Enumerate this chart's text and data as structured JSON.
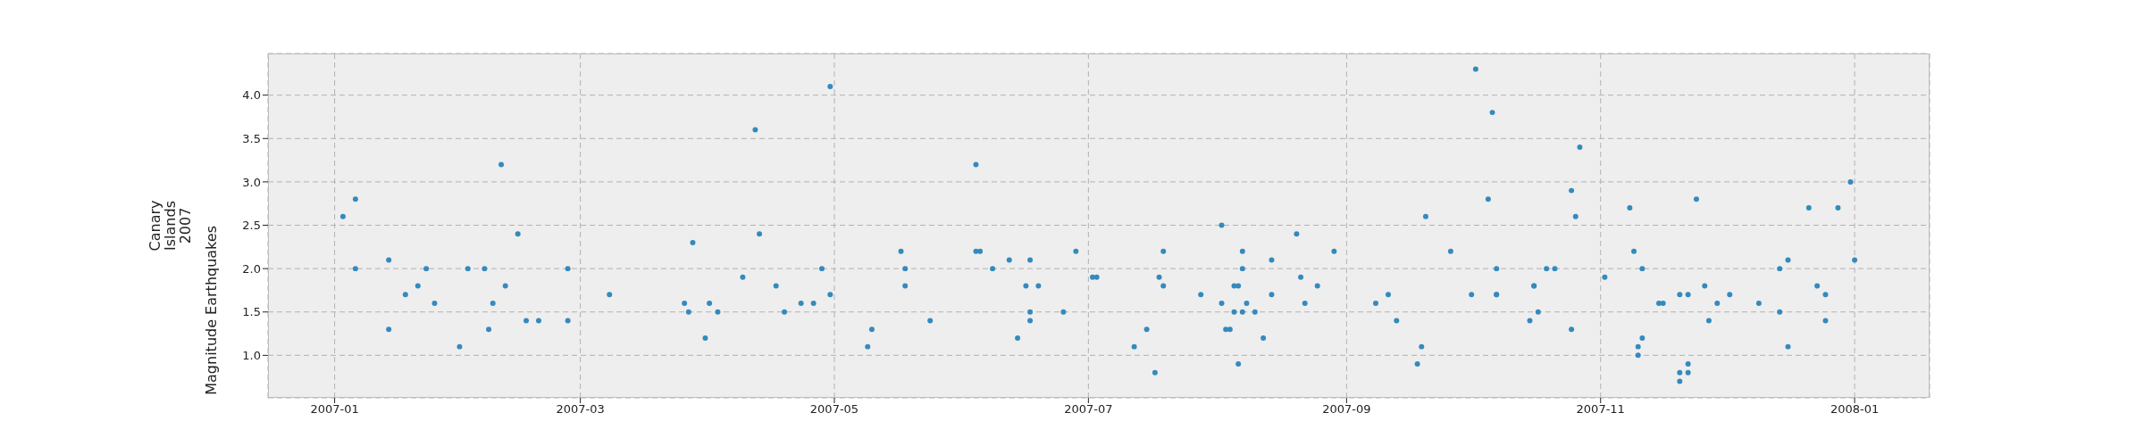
{
  "chart_data": {
    "type": "scatter",
    "title": "Canary Islands 2007",
    "ylabel": "Magnitude Earthquakes",
    "x": [
      "2007-01-03",
      "2007-01-06",
      "2007-01-06",
      "2007-01-14",
      "2007-01-14",
      "2007-01-18",
      "2007-01-21",
      "2007-01-23",
      "2007-01-25",
      "2007-01-31",
      "2007-02-02",
      "2007-02-06",
      "2007-02-07",
      "2007-02-08",
      "2007-02-10",
      "2007-02-11",
      "2007-02-14",
      "2007-02-16",
      "2007-02-19",
      "2007-02-26",
      "2007-02-26",
      "2007-03-08",
      "2007-03-26",
      "2007-03-27",
      "2007-03-28",
      "2007-03-31",
      "2007-04-01",
      "2007-04-03",
      "2007-04-09",
      "2007-04-12",
      "2007-04-13",
      "2007-04-17",
      "2007-04-19",
      "2007-04-23",
      "2007-04-26",
      "2007-04-28",
      "2007-04-30",
      "2007-04-30",
      "2007-05-09",
      "2007-05-10",
      "2007-05-17",
      "2007-05-18",
      "2007-05-18",
      "2007-05-24",
      "2007-06-04",
      "2007-06-04",
      "2007-06-05",
      "2007-06-08",
      "2007-06-12",
      "2007-06-14",
      "2007-06-16",
      "2007-06-17",
      "2007-06-17",
      "2007-06-17",
      "2007-06-19",
      "2007-06-25",
      "2007-06-28",
      "2007-07-02",
      "2007-07-03",
      "2007-07-12",
      "2007-07-15",
      "2007-07-17",
      "2007-07-18",
      "2007-07-19",
      "2007-07-19",
      "2007-07-28",
      "2007-08-02",
      "2007-08-02",
      "2007-08-03",
      "2007-08-04",
      "2007-08-05",
      "2007-08-05",
      "2007-08-06",
      "2007-08-06",
      "2007-08-07",
      "2007-08-07",
      "2007-08-07",
      "2007-08-08",
      "2007-08-10",
      "2007-08-12",
      "2007-08-14",
      "2007-08-14",
      "2007-08-20",
      "2007-08-21",
      "2007-08-22",
      "2007-08-25",
      "2007-08-29",
      "2007-09-08",
      "2007-09-11",
      "2007-09-13",
      "2007-09-18",
      "2007-09-19",
      "2007-09-20",
      "2007-09-26",
      "2007-10-01",
      "2007-10-02",
      "2007-10-05",
      "2007-10-06",
      "2007-10-07",
      "2007-10-07",
      "2007-10-07",
      "2007-10-15",
      "2007-10-16",
      "2007-10-16",
      "2007-10-17",
      "2007-10-19",
      "2007-10-21",
      "2007-10-25",
      "2007-10-25",
      "2007-10-26",
      "2007-10-27",
      "2007-11-02",
      "2007-11-08",
      "2007-11-09",
      "2007-11-10",
      "2007-11-10",
      "2007-11-11",
      "2007-11-11",
      "2007-11-15",
      "2007-11-16",
      "2007-11-20",
      "2007-11-20",
      "2007-11-20",
      "2007-11-22",
      "2007-11-22",
      "2007-11-22",
      "2007-11-24",
      "2007-11-26",
      "2007-11-27",
      "2007-11-29",
      "2007-12-02",
      "2007-12-09",
      "2007-12-14",
      "2007-12-14",
      "2007-12-16",
      "2007-12-16",
      "2007-12-21",
      "2007-12-23",
      "2007-12-25",
      "2007-12-25",
      "2007-12-28",
      "2007-12-31",
      "2008-01-01"
    ],
    "series": [
      {
        "color": "#348abd",
        "values": [
          2.6,
          2.8,
          2.0,
          2.1,
          1.3,
          1.7,
          1.8,
          2.0,
          1.6,
          1.1,
          2.0,
          2.0,
          1.3,
          1.6,
          3.2,
          1.8,
          2.4,
          1.4,
          1.4,
          2.0,
          1.4,
          1.7,
          1.6,
          1.5,
          2.3,
          1.2,
          1.6,
          1.5,
          1.9,
          3.6,
          2.4,
          1.8,
          1.5,
          1.6,
          1.6,
          2.0,
          1.7,
          4.1,
          1.1,
          1.3,
          2.2,
          2.0,
          1.8,
          1.4,
          3.2,
          2.2,
          2.2,
          2.0,
          2.1,
          1.2,
          1.8,
          2.1,
          1.5,
          1.4,
          1.8,
          1.5,
          2.2,
          1.9,
          1.9,
          1.1,
          1.3,
          0.8,
          1.9,
          2.2,
          1.8,
          1.7,
          1.6,
          2.5,
          1.3,
          1.3,
          1.5,
          1.8,
          1.8,
          0.9,
          2.2,
          2.0,
          1.5,
          1.6,
          1.5,
          1.2,
          1.7,
          2.1,
          2.4,
          1.9,
          1.6,
          1.8,
          2.2,
          1.6,
          1.7,
          1.4,
          0.9,
          1.1,
          2.6,
          2.2,
          1.7,
          4.3,
          2.8,
          3.8,
          2.0,
          1.7,
          1.7,
          1.4,
          1.8,
          1.8,
          1.5,
          2.0,
          2.0,
          1.3,
          2.9,
          2.6,
          3.4,
          1.9,
          2.7,
          2.2,
          1.0,
          1.1,
          1.2,
          2.0,
          1.6,
          1.6,
          0.7,
          0.8,
          1.7,
          1.7,
          0.8,
          0.9,
          2.8,
          1.8,
          1.4,
          1.6,
          1.7,
          1.6,
          2.0,
          1.5,
          2.1,
          1.1,
          2.7,
          1.8,
          1.7,
          1.4,
          2.7,
          3.0,
          2.1
        ]
      }
    ],
    "xlim": [
      "2006-12-16",
      "2008-01-19"
    ],
    "ylim": [
      0.51,
      4.48
    ],
    "xticks": [
      "2007-01",
      "2007-03",
      "2007-05",
      "2007-07",
      "2007-09",
      "2007-11",
      "2008-01"
    ],
    "yticks": [
      {
        "value": 1,
        "label": "1.0"
      },
      {
        "value": 1.5,
        "label": "1.5"
      },
      {
        "value": 2,
        "label": "2.0"
      },
      {
        "value": 2.5,
        "label": "2.5"
      },
      {
        "value": 3,
        "label": "3.0"
      },
      {
        "value": 3.5,
        "label": "3.5"
      },
      {
        "value": 4,
        "label": "4.0"
      }
    ],
    "grid": true,
    "marker": "circle"
  }
}
